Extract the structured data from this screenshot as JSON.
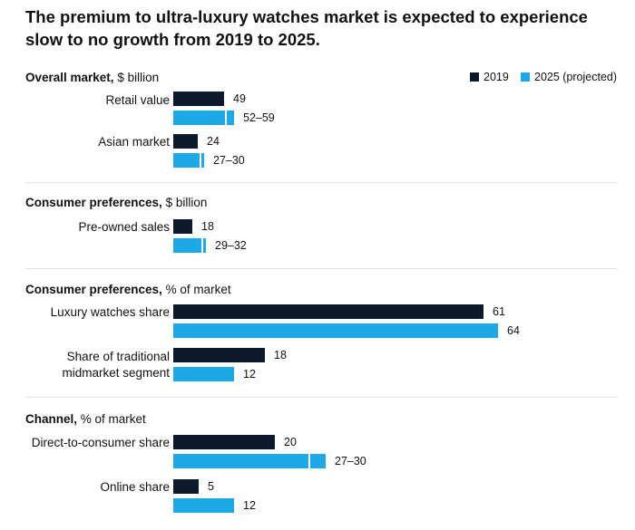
{
  "title": "The premium to ultra-luxury watches market is expected to experience slow to no growth from 2019 to 2025.",
  "legend": [
    {
      "name": "2019",
      "color": "#0d1a2e"
    },
    {
      "name": "2025 (projected)",
      "color": "#1da8e8"
    }
  ],
  "chart_data": {
    "type": "bar",
    "orientation": "horizontal",
    "title": "The premium to ultra-luxury watches market is expected to experience slow to no growth from 2019 to 2025.",
    "series_names": [
      "2019",
      "2025 (projected)"
    ],
    "sections": [
      {
        "label": "Overall market,",
        "unit": "$ billion",
        "items": [
          {
            "category": "Retail value",
            "values": [
              49,
              [
                52,
                59
              ]
            ],
            "labels": [
              "49",
              "52–59"
            ]
          },
          {
            "category": "Asian market",
            "values": [
              24,
              [
                27,
                30
              ]
            ],
            "labels": [
              "24",
              "27–30"
            ]
          }
        ]
      },
      {
        "label": "Consumer preferences,",
        "unit": "$ billion",
        "items": [
          {
            "category": "Pre-owned sales",
            "values": [
              18,
              [
                29,
                32
              ]
            ],
            "labels": [
              "18",
              "29–32"
            ]
          }
        ]
      },
      {
        "label": "Consumer preferences,",
        "unit": "% of market",
        "items": [
          {
            "category": "Luxury watches share",
            "values": [
              61,
              64
            ],
            "labels": [
              "61",
              "64"
            ]
          },
          {
            "category": "Share of traditional midmarket segment",
            "values": [
              18,
              12
            ],
            "labels": [
              "18",
              "12"
            ]
          }
        ]
      },
      {
        "label": "Channel,",
        "unit": "% of market",
        "items": [
          {
            "category": "Direct-to-consumer share",
            "values": [
              20,
              [
                27,
                30
              ]
            ],
            "labels": [
              "20",
              "27–30"
            ]
          },
          {
            "category": "Online share",
            "values": [
              5,
              12
            ],
            "labels": [
              "5",
              "12"
            ]
          }
        ]
      }
    ]
  }
}
